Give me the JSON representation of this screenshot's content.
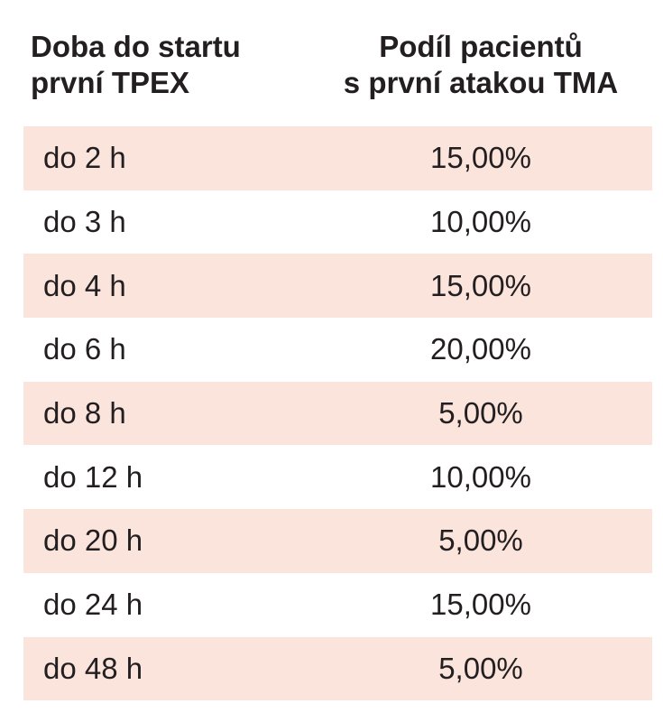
{
  "table": {
    "header": {
      "col1_line1": "Doba do startu",
      "col1_line2": "první TPEX",
      "col2_line1": "Podíl pacientů",
      "col2_line2": "s první atakou TMA"
    },
    "rows": [
      {
        "time": "do 2 h",
        "share": "15,00%"
      },
      {
        "time": "do 3 h",
        "share": "10,00%"
      },
      {
        "time": "do 4 h",
        "share": "15,00%"
      },
      {
        "time": "do 6 h",
        "share": "20,00%"
      },
      {
        "time": "do 8 h",
        "share": "5,00%"
      },
      {
        "time": "do 12 h",
        "share": "10,00%"
      },
      {
        "time": "do 20 h",
        "share": "5,00%"
      },
      {
        "time": "do 24 h",
        "share": "15,00%"
      },
      {
        "time": "do 48 h",
        "share": "5,00%"
      }
    ],
    "stripe_color": "#fbe4dc"
  }
}
